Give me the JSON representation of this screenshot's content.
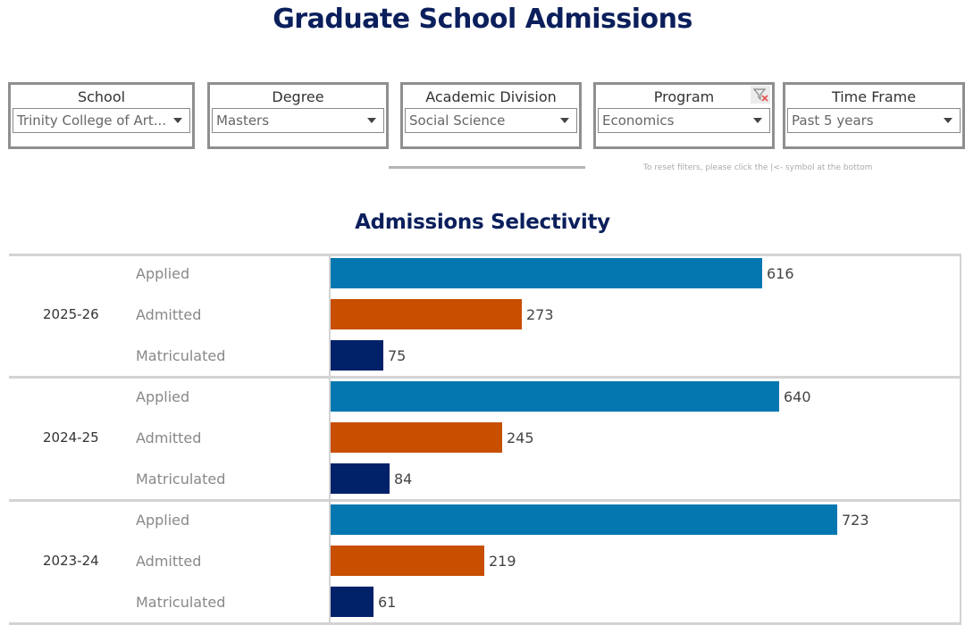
{
  "header": {
    "title": "Graduate School Admissions"
  },
  "filters": [
    {
      "label": "School",
      "value": "Trinity College of Art..."
    },
    {
      "label": "Degree",
      "value": "Masters"
    },
    {
      "label": "Academic Division",
      "value": "Social Science"
    },
    {
      "label": "Program",
      "value": "Economics",
      "clear_icon": "filter-clear-icon"
    },
    {
      "label": "Time Frame",
      "value": "Past 5 years"
    }
  ],
  "reset_note": "To reset filters, please click the |<- symbol at the bottom",
  "colors": {
    "applied": "#0577b0",
    "admitted": "#c84e00",
    "matriculated": "#012169",
    "title": "#0b1f5c"
  },
  "chart_data": {
    "type": "bar",
    "orientation": "horizontal",
    "title": "Admissions Selectivity",
    "xlabel": "",
    "ylabel": "",
    "xlim": [
      0,
      740
    ],
    "grid": false,
    "groups": [
      {
        "year": "2025-26",
        "rows": [
          {
            "category": "Applied",
            "value": 616,
            "label": "616"
          },
          {
            "category": "Admitted",
            "value": 273,
            "label": "273"
          },
          {
            "category": "Matriculated",
            "value": 75,
            "label": "75"
          }
        ]
      },
      {
        "year": "2024-25",
        "rows": [
          {
            "category": "Applied",
            "value": 640,
            "label": "640"
          },
          {
            "category": "Admitted",
            "value": 245,
            "label": "245"
          },
          {
            "category": "Matriculated",
            "value": 84,
            "label": "84"
          }
        ]
      },
      {
        "year": "2023-24",
        "rows": [
          {
            "category": "Applied",
            "value": 723,
            "label": "723"
          },
          {
            "category": "Admitted",
            "value": 219,
            "label": "219"
          },
          {
            "category": "Matriculated",
            "value": 61,
            "label": "61"
          }
        ]
      }
    ]
  }
}
